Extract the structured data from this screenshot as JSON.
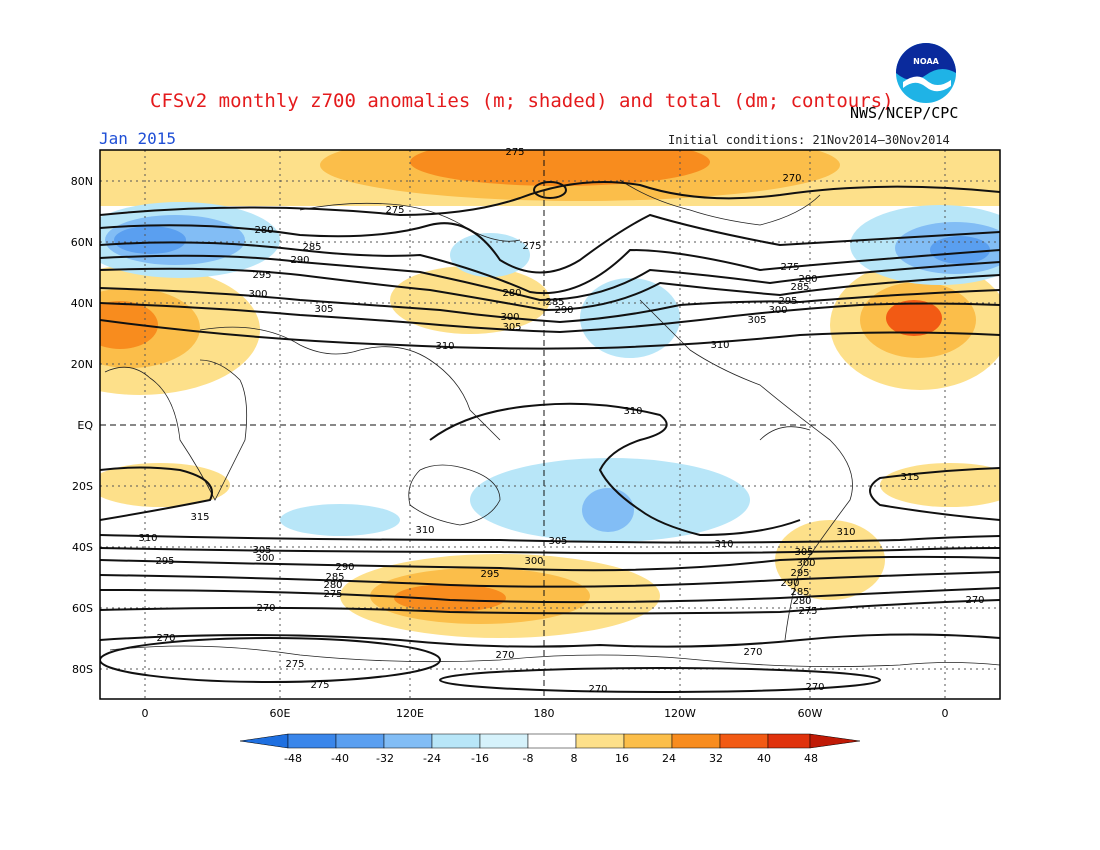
{
  "header": {
    "title": "CFSv2 monthly z700 anomalies (m; shaded) and total (dm; contours)",
    "agency": "NWS/NCEP/CPC",
    "month": "Jan 2015",
    "initial_conditions": "Initial conditions: 21Nov2014–30Nov2014",
    "logo_text": "NOAA"
  },
  "map": {
    "lat_labels": [
      "80N",
      "60N",
      "40N",
      "20N",
      "EQ",
      "20S",
      "40S",
      "60S",
      "80S"
    ],
    "lon_labels": [
      "0",
      "60E",
      "120E",
      "180",
      "120W",
      "60W",
      "0"
    ],
    "contour_labels": [
      "270",
      "275",
      "280",
      "285",
      "290",
      "295",
      "300",
      "305",
      "310",
      "315"
    ]
  },
  "colorbar": {
    "ticks": [
      "-48",
      "-40",
      "-32",
      "-24",
      "-16",
      "-8",
      "8",
      "16",
      "24",
      "32",
      "40",
      "48"
    ],
    "colors": [
      "#1e6fe0",
      "#3a86ea",
      "#5a9ff0",
      "#82bdf5",
      "#b8e6f8",
      "#ffffff",
      "#fde08a",
      "#fbbe4a",
      "#f88c1e",
      "#f25a14",
      "#e0320c",
      "#c01a06"
    ]
  }
}
